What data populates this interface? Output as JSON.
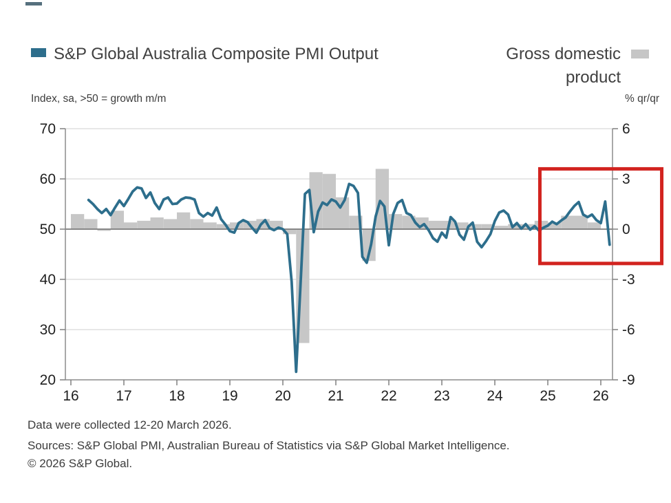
{
  "legend": {
    "left": {
      "label": "S&P Global Australia Composite PMI Output",
      "swatch_color": "#2d6e8c"
    },
    "right": {
      "label": "Gross domestic product",
      "swatch_color": "#c6c6c6"
    }
  },
  "axis_subtitles": {
    "left": "Index, sa, >50 = growth m/m",
    "right": "% qr/qr"
  },
  "footer": {
    "line1": "Data were collected 12-20 March 2026.",
    "line2": "Sources: S&P Global PMI, Australian Bureau of Statistics via S&P Global Market Intelligence.",
    "line3": "© 2026 S&P Global."
  },
  "colors": {
    "line": "#2d6e8c",
    "bar": "#c7c7c7",
    "grid": "#cfcfcf",
    "zero_line": "#7a7a7a",
    "axis": "#8c8c8c",
    "tick": "#7f7f7f",
    "highlight": "#d2231f",
    "text": "#1f1f1f"
  },
  "chart_data": {
    "type": "line+bar",
    "title_left": "S&P Global Australia Composite PMI Output",
    "title_right": "Gross domestic product",
    "x_ticks": [
      "16",
      "17",
      "18",
      "19",
      "20",
      "21",
      "22",
      "23",
      "24",
      "25",
      "26"
    ],
    "left_axis": {
      "label": "Index, sa, >50 = growth m/m",
      "ticks": [
        70,
        60,
        50,
        40,
        30,
        20
      ],
      "range": [
        20,
        70
      ]
    },
    "right_axis": {
      "label": "% qr/qr",
      "ticks": [
        6,
        3,
        0,
        -3,
        -6,
        -9
      ],
      "range": [
        -9,
        6
      ]
    },
    "baseline": {
      "left": 50,
      "right": 0
    },
    "grid": true,
    "legend_position": "top",
    "series": [
      {
        "name": "S&P Global Australia Composite PMI Output",
        "type": "line",
        "axis": "left",
        "color": "#2d6e8c",
        "frequency": "monthly",
        "start": "2016-05",
        "end": "2026-03",
        "values": [
          55.8,
          55.0,
          54.0,
          53.2,
          54.0,
          52.8,
          54.3,
          55.7,
          54.6,
          56.0,
          57.5,
          58.3,
          58.1,
          56.2,
          57.3,
          55.2,
          54.0,
          55.9,
          56.3,
          55.0,
          55.1,
          55.9,
          56.3,
          56.2,
          55.9,
          53.2,
          52.5,
          53.2,
          52.7,
          54.3,
          52.0,
          50.9,
          49.6,
          49.3,
          51.2,
          51.8,
          51.4,
          50.3,
          49.3,
          50.9,
          51.8,
          50.2,
          49.8,
          50.3,
          50.0,
          49.0,
          39.5,
          21.6,
          39.0,
          57.0,
          57.8,
          49.4,
          53.5,
          55.3,
          54.8,
          55.9,
          55.5,
          54.3,
          55.8,
          59.0,
          58.6,
          57.2,
          44.5,
          43.3,
          47.0,
          52.5,
          55.6,
          54.5,
          46.8,
          53.0,
          55.2,
          55.8,
          53.2,
          52.8,
          51.3,
          50.4,
          51.0,
          49.8,
          48.2,
          47.5,
          49.3,
          48.3,
          52.4,
          51.5,
          48.9,
          47.9,
          50.5,
          51.3,
          47.5,
          46.4,
          47.6,
          49.0,
          51.6,
          53.3,
          53.7,
          52.9,
          50.4,
          51.2,
          50.1,
          51.0,
          49.9,
          50.6,
          49.7,
          50.3,
          50.7,
          51.5,
          51.0,
          51.7,
          52.3,
          53.5,
          54.6,
          55.4,
          52.9,
          52.4,
          52.9,
          51.8,
          51.2,
          55.5,
          46.9
        ]
      },
      {
        "name": "Gross domestic product",
        "type": "bar",
        "axis": "right",
        "color": "#c7c7c7",
        "frequency": "quarterly",
        "start": "2016-Q1",
        "end": "2025-Q4",
        "values": [
          0.9,
          0.6,
          -0.1,
          1.1,
          0.4,
          0.5,
          0.7,
          0.6,
          1.0,
          0.6,
          0.4,
          0.3,
          0.4,
          0.5,
          0.6,
          0.5,
          -0.3,
          -6.8,
          3.4,
          3.3,
          1.9,
          0.8,
          -1.9,
          3.6,
          0.9,
          0.8,
          0.7,
          0.5,
          0.5,
          0.4,
          0.3,
          0.3,
          0.2,
          0.3,
          0.3,
          0.5,
          0.4,
          0.8,
          0.8,
          0.4
        ]
      }
    ],
    "highlight_box": {
      "x0_years_from_2016": 8.85,
      "x1_years_from_2016": 11.15,
      "top_right_value": 3.6,
      "bottom_right_value": -2.05,
      "color": "#d2231f"
    }
  }
}
